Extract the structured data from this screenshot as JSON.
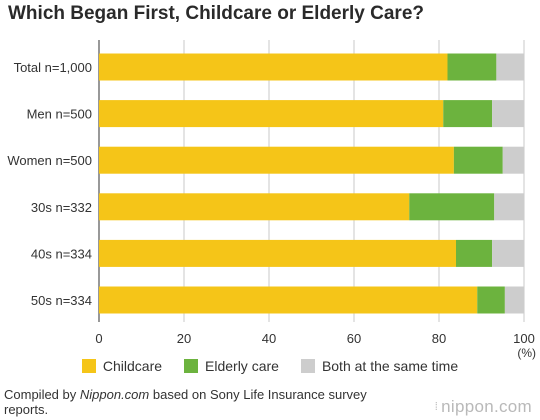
{
  "chart_data": {
    "type": "bar",
    "orientation": "horizontal",
    "stacked": true,
    "title": "Which Began First, Childcare or Elderly Care?",
    "categories": [
      "Total n=1,000",
      "Men n=500",
      "Women n=500",
      "30s n=332",
      "40s n=334",
      "50s n=334"
    ],
    "series": [
      {
        "name": "Childcare",
        "color": "#f5c518",
        "values": [
          82,
          81,
          83.5,
          73,
          84,
          89
        ]
      },
      {
        "name": "Elderly care",
        "color": "#6cb33e",
        "values": [
          11.5,
          11.5,
          11.5,
          20,
          8.5,
          6.5
        ]
      },
      {
        "name": "Both at the same time",
        "color": "#cdcdcd",
        "values": [
          6.5,
          7.5,
          5,
          7,
          7.5,
          4.5
        ]
      }
    ],
    "xlim": [
      0,
      100
    ],
    "xticks": [
      "0",
      "20",
      "40",
      "60",
      "80",
      "100"
    ],
    "xunit": "(%)",
    "grid": true,
    "legend_position": "bottom"
  },
  "legend": {
    "childcare": "Childcare",
    "elderly": "Elderly care",
    "both": "Both at the same time"
  },
  "footer": {
    "prefix": "Compiled by ",
    "site": "Nippon.com",
    "suffix": " based on Sony Life Insurance survey reports.",
    "brand": "nippon.com"
  }
}
